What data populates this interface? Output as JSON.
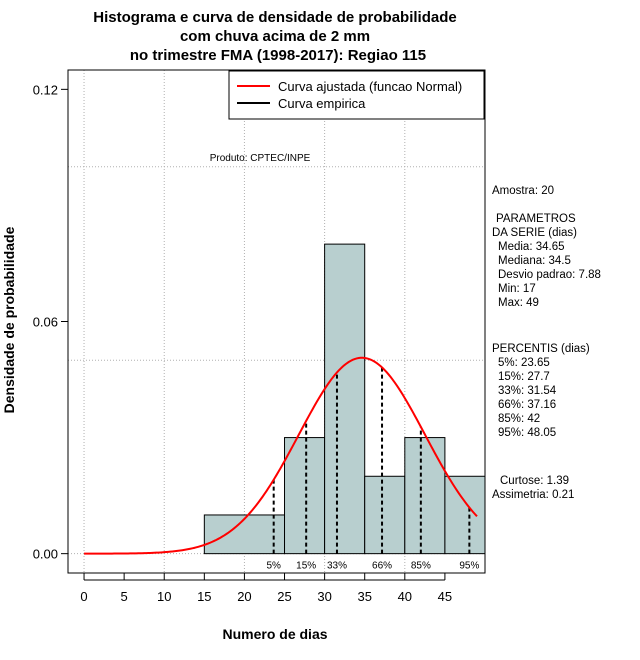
{
  "chart_data": {
    "type": "histogram",
    "title_lines": [
      "Histograma e curva de densidade de probabilidade",
      "com chuva acima de 2 mm",
      "no trimestre FMA (1998-2017): Regiao 115"
    ],
    "xlabel": "Numero de dias",
    "ylabel": "Densidade de probabilidade",
    "xlim": [
      -2,
      50
    ],
    "ylim": [
      -0.005,
      0.125
    ],
    "x_ticks": [
      0,
      5,
      10,
      15,
      20,
      25,
      30,
      35,
      40,
      45
    ],
    "y_ticks": [
      0.0,
      0.06,
      0.12
    ],
    "y_tick_labels": [
      "0.00",
      "0.06",
      "0.12"
    ],
    "grid_y": [
      0.0,
      0.05,
      0.1
    ],
    "grid_x": [
      0,
      10,
      20,
      30,
      40
    ],
    "bins": [
      {
        "x0": 15,
        "x1": 25,
        "density": 0.01
      },
      {
        "x0": 25,
        "x1": 30,
        "density": 0.03
      },
      {
        "x0": 30,
        "x1": 35,
        "density": 0.08
      },
      {
        "x0": 35,
        "x1": 40,
        "density": 0.02
      },
      {
        "x0": 40,
        "x1": 45,
        "density": 0.03
      },
      {
        "x0": 45,
        "x1": 50,
        "density": 0.02
      }
    ],
    "bar_color": "#b8cfcf",
    "fitted_curve": {
      "name": "Curva ajustada (funcao Normal)",
      "mean": 34.65,
      "sd": 7.88,
      "x_from": 0,
      "x_to": 49,
      "color": "#ff0000"
    },
    "empirical_curve": {
      "name": "Curva empirica",
      "color": "#000000"
    },
    "percentile_lines": [
      {
        "label": "5%",
        "x": 23.65
      },
      {
        "label": "15%",
        "x": 27.7
      },
      {
        "label": "33%",
        "x": 31.54
      },
      {
        "label": "66%",
        "x": 37.16
      },
      {
        "label": "85%",
        "x": 42
      },
      {
        "label": "95%",
        "x": 48.05
      }
    ],
    "legend": [
      "Curva ajustada (funcao Normal)",
      "Curva empirica"
    ],
    "legend_position": "top-right",
    "watermark": "Produto: CPTEC/INPE"
  },
  "side_panel": {
    "amostra": "Amostra: 20",
    "parametros_title": "PARAMETROS",
    "da_serie": "DA SERIE (dias)",
    "media": "Media: 34.65",
    "mediana": "Mediana: 34.5",
    "desvio": "Desvio padrao: 7.88",
    "min": "Min: 17",
    "max": "Max: 49",
    "percentis_title": "PERCENTIS (dias)",
    "p5": "5%: 23.65",
    "p15": "15%: 27.7",
    "p33": "33%: 31.54",
    "p66": "66%: 37.16",
    "p85": "85%: 42",
    "p95": "95%: 48.05",
    "curtose": "Curtose: 1.39",
    "assimetria": "Assimetria: 0.21"
  }
}
